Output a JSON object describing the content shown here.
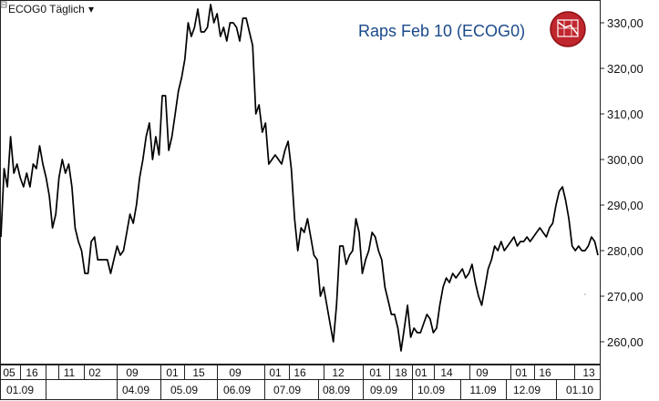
{
  "series_name": "ECOG0 Täglich",
  "chart_data": {
    "type": "line",
    "title": "Raps Feb 10 (ECOG0)",
    "series_label": "ECOG0 Täglich",
    "ylim": [
      255,
      335
    ],
    "yticks": [
      260,
      270,
      280,
      290,
      300,
      310,
      320,
      330
    ],
    "ytick_labels": [
      "260,00",
      "270,00",
      "280,00",
      "290,00",
      "300,00",
      "310,00",
      "320,00",
      "330,00"
    ],
    "x_day_labels": [
      "05",
      "16",
      "11",
      "02",
      "09",
      "01",
      "15",
      "09",
      "01",
      "16",
      "12",
      "01",
      "18",
      "01",
      "14",
      "09",
      "01",
      "16",
      "13"
    ],
    "x_month_labels": [
      "01.09",
      "04.09",
      "05.09",
      "06.09",
      "07.09",
      "08.09",
      "09.09",
      "10.09",
      "11.09",
      "12.09",
      "01.10"
    ],
    "series": [
      {
        "values": [
          283,
          298,
          294,
          305,
          297,
          299,
          296,
          294,
          297,
          294,
          299,
          298,
          303,
          299,
          296,
          292,
          285,
          288,
          296,
          300,
          297,
          299,
          294,
          285,
          282,
          280,
          275,
          275,
          282,
          283,
          278,
          278,
          278,
          278,
          275,
          278,
          281,
          279,
          280,
          284,
          288,
          286,
          290,
          296,
          300,
          305,
          308,
          300,
          305,
          301,
          314,
          314,
          302,
          305,
          310,
          315,
          318,
          322,
          330,
          327,
          329,
          333,
          328,
          328,
          329,
          334,
          330,
          332,
          327,
          329,
          326,
          330,
          330,
          329,
          326,
          331,
          331,
          328,
          325,
          310,
          312,
          306,
          308,
          299,
          300,
          301,
          300,
          299,
          302,
          304,
          298,
          287,
          280,
          285,
          284,
          287,
          283,
          279,
          278,
          270,
          272,
          268,
          264,
          260,
          268,
          281,
          281,
          277,
          279,
          280,
          287,
          284,
          275,
          278,
          280,
          284,
          283,
          280,
          278,
          272,
          269,
          266,
          266,
          263,
          258,
          263,
          268,
          261,
          263,
          262,
          262,
          264,
          266,
          265,
          262,
          263,
          268,
          272,
          274,
          273,
          275,
          274,
          275,
          276,
          274,
          275,
          277,
          273,
          270,
          268,
          272,
          276,
          278,
          281,
          280,
          282,
          280,
          281,
          282,
          283,
          281,
          282,
          282,
          283,
          282,
          283,
          284,
          285,
          284,
          283,
          285,
          286,
          290,
          293,
          294,
          291,
          287,
          281,
          280,
          281,
          280,
          280,
          281,
          283,
          282,
          279
        ]
      }
    ]
  }
}
